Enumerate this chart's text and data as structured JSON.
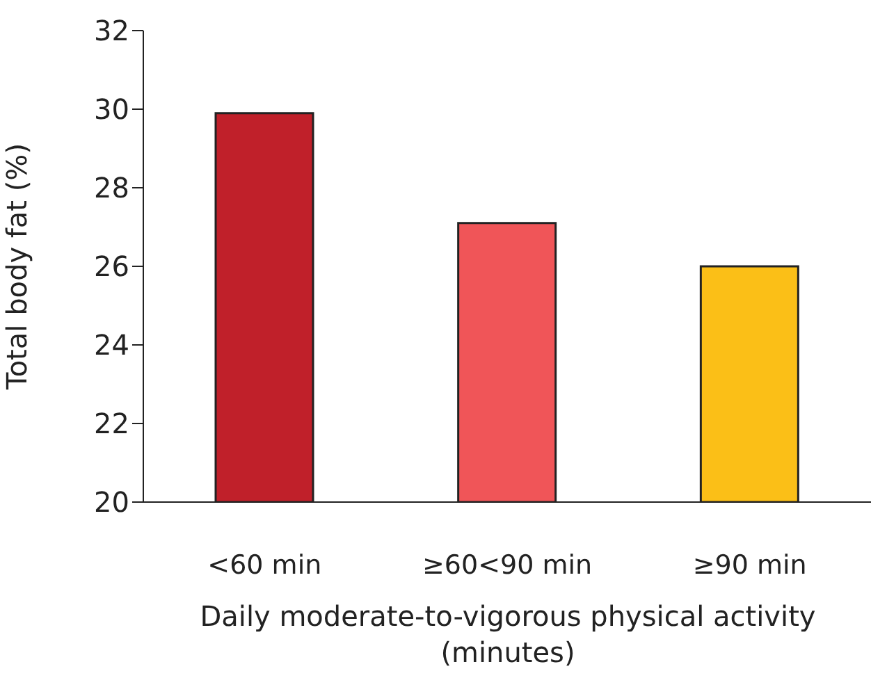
{
  "chart_data": {
    "type": "bar",
    "xlabel": "Daily moderate-to-vigorous physical activity (minutes)",
    "ylabel": "Total body fat (%)",
    "categories": [
      "<60 min",
      "≥60<90 min",
      "≥90 min"
    ],
    "values": [
      29.9,
      27.1,
      26.0
    ],
    "colors": [
      "#c0202a",
      "#f05558",
      "#fbbf17"
    ],
    "ylim": [
      20,
      32
    ],
    "yticks": [
      20,
      22,
      24,
      26,
      28,
      30,
      32
    ]
  }
}
